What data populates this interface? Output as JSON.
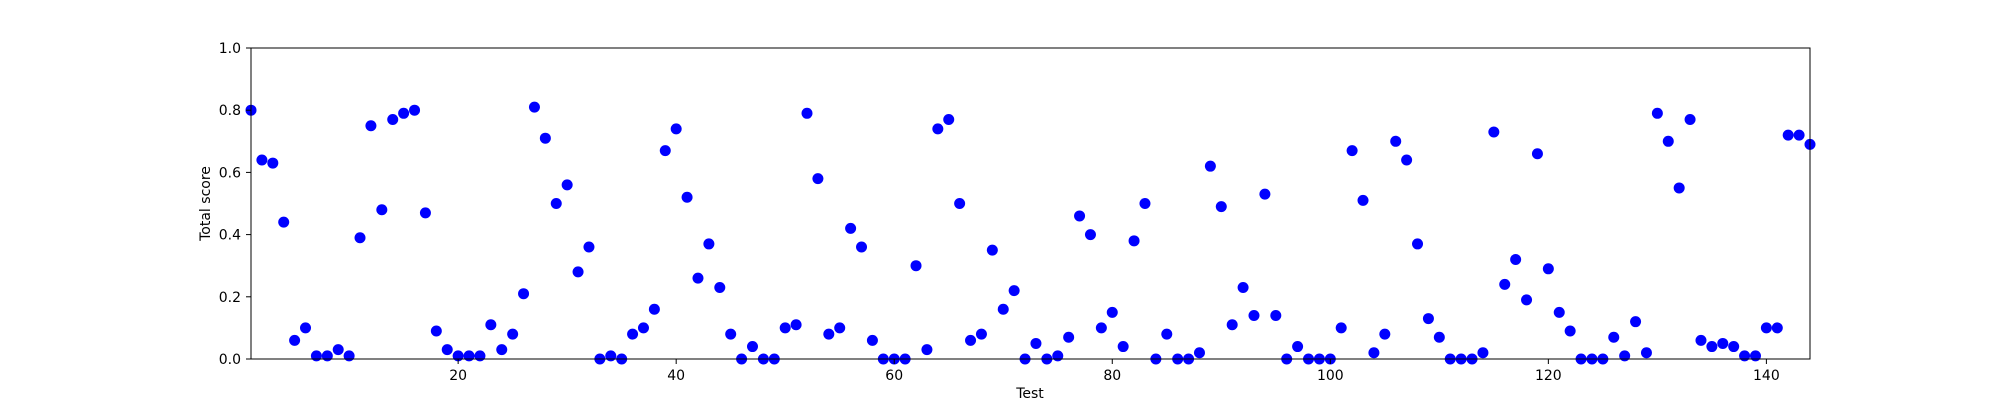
{
  "chart_data": {
    "type": "scatter",
    "title": "",
    "xlabel": "Test",
    "ylabel": "Total score",
    "xlim": [
      1,
      144
    ],
    "ylim": [
      0,
      1
    ],
    "x_ticks": [
      20,
      40,
      60,
      80,
      100,
      120,
      140
    ],
    "y_ticks": [
      0.0,
      0.2,
      0.4,
      0.6,
      0.8,
      1.0
    ],
    "x_tick_labels": [
      "20",
      "40",
      "60",
      "80",
      "100",
      "120",
      "140"
    ],
    "y_tick_labels": [
      "0.0",
      "0.2",
      "0.4",
      "0.6",
      "0.8",
      "1.0"
    ],
    "grid": false,
    "marker_color": "#0000ff",
    "x": [
      1,
      2,
      3,
      4,
      5,
      6,
      7,
      8,
      9,
      10,
      11,
      12,
      13,
      14,
      15,
      16,
      17,
      18,
      19,
      20,
      21,
      22,
      23,
      24,
      25,
      26,
      27,
      28,
      29,
      30,
      31,
      32,
      33,
      34,
      35,
      36,
      37,
      38,
      39,
      40,
      41,
      42,
      43,
      44,
      45,
      46,
      47,
      48,
      49,
      50,
      51,
      52,
      53,
      54,
      55,
      56,
      57,
      58,
      59,
      60,
      61,
      62,
      63,
      64,
      65,
      66,
      67,
      68,
      69,
      70,
      71,
      72,
      73,
      74,
      75,
      76,
      77,
      78,
      79,
      80,
      81,
      82,
      83,
      84,
      85,
      86,
      87,
      88,
      89,
      90,
      91,
      92,
      93,
      94,
      95,
      96,
      97,
      98,
      99,
      100,
      101,
      102,
      103,
      104,
      105,
      106,
      107,
      108,
      109,
      110,
      111,
      112,
      113,
      114,
      115,
      116,
      117,
      118,
      119,
      120,
      121,
      122,
      123,
      124,
      125,
      126,
      127,
      128,
      129,
      130,
      131,
      132,
      133,
      134,
      135,
      136,
      137,
      138,
      139,
      140,
      141,
      142,
      143,
      144
    ],
    "y": [
      0.8,
      0.64,
      0.63,
      0.44,
      0.06,
      0.1,
      0.01,
      0.01,
      0.03,
      0.01,
      0.39,
      0.75,
      0.48,
      0.77,
      0.79,
      0.8,
      0.47,
      0.09,
      0.03,
      0.01,
      0.01,
      0.01,
      0.11,
      0.03,
      0.08,
      0.21,
      0.81,
      0.71,
      0.5,
      0.56,
      0.28,
      0.36,
      0.0,
      0.01,
      0.0,
      0.08,
      0.1,
      0.16,
      0.67,
      0.74,
      0.52,
      0.26,
      0.37,
      0.23,
      0.08,
      0.0,
      0.04,
      0.0,
      0.0,
      0.1,
      0.11,
      0.79,
      0.58,
      0.08,
      0.1,
      0.42,
      0.36,
      0.06,
      0.0,
      0.0,
      0.0,
      0.3,
      0.03,
      0.74,
      0.77,
      0.5,
      0.06,
      0.08,
      0.35,
      0.16,
      0.22,
      0.0,
      0.05,
      0.0,
      0.01,
      0.07,
      0.46,
      0.4,
      0.1,
      0.15,
      0.04,
      0.38,
      0.5,
      0.0,
      0.08,
      0.0,
      0.0,
      0.02,
      0.62,
      0.49,
      0.11,
      0.23,
      0.14,
      0.53,
      0.14,
      0.0,
      0.04,
      0.0,
      0.0,
      0.0,
      0.1,
      0.67,
      0.51,
      0.02,
      0.08,
      0.7,
      0.64,
      0.37,
      0.13,
      0.07,
      0.0,
      0.0,
      0.0,
      0.02,
      0.73,
      0.24,
      0.32,
      0.19,
      0.66,
      0.29,
      0.15,
      0.09,
      0.0,
      0.0,
      0.0,
      0.07,
      0.01,
      0.12,
      0.02,
      0.79,
      0.7,
      0.55,
      0.77,
      0.06,
      0.04,
      0.05,
      0.04,
      0.01,
      0.01,
      0.1,
      0.1,
      0.72,
      0.72,
      0.69
    ]
  }
}
